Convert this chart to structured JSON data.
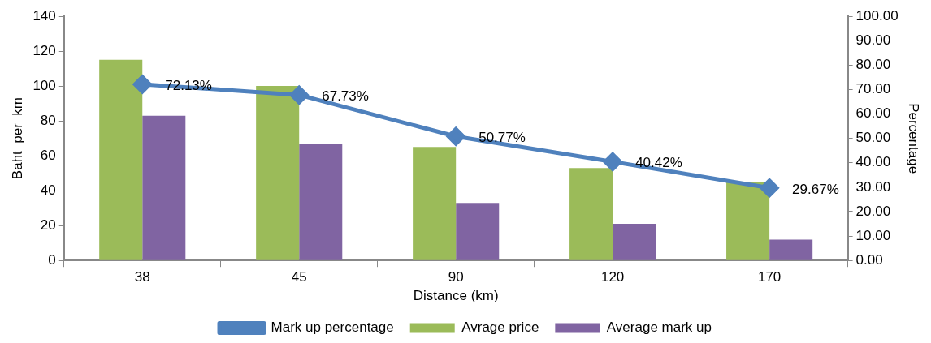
{
  "chart_data": {
    "type": "bar",
    "xlabel": "Distance (km)",
    "ylabel": "Baht  per  km",
    "y2label": "Percentage",
    "categories": [
      "38",
      "45",
      "90",
      "120",
      "170"
    ],
    "series": [
      {
        "name": "Avrage price",
        "color": "#9bbb59",
        "values": [
          115,
          100,
          65,
          53,
          45
        ]
      },
      {
        "name": "Average mark up",
        "color": "#8064a2",
        "values": [
          83,
          67,
          33,
          21,
          12
        ]
      },
      {
        "name": "Mark up percentage",
        "type": "line",
        "axis": "y2",
        "color": "#4f81bd",
        "values": [
          72.13,
          67.73,
          50.77,
          40.42,
          29.67
        ],
        "value_labels": [
          "72.13%",
          "67.73%",
          "50.77%",
          "40.42%",
          "29.67%"
        ]
      }
    ],
    "ylim": [
      0,
      140
    ],
    "yticks": [
      0,
      20,
      40,
      60,
      80,
      100,
      120,
      140
    ],
    "y2lim": [
      0,
      100
    ],
    "y2ticks": [
      {
        "value": 0,
        "label": "0.00"
      },
      {
        "value": 10,
        "label": "10.00"
      },
      {
        "value": 20,
        "label": "20.00"
      },
      {
        "value": 30,
        "label": "30.00"
      },
      {
        "value": 40,
        "label": "40.00"
      },
      {
        "value": 50,
        "label": "50.00"
      },
      {
        "value": 60,
        "label": "60.00"
      },
      {
        "value": 70,
        "label": "70.00"
      },
      {
        "value": 80,
        "label": "80.00"
      },
      {
        "value": 90,
        "label": "90.00"
      },
      {
        "value": 100,
        "label": "100.00"
      }
    ],
    "grid": false,
    "legend": "bottom",
    "marker": "diamond",
    "line_style": "solid"
  }
}
